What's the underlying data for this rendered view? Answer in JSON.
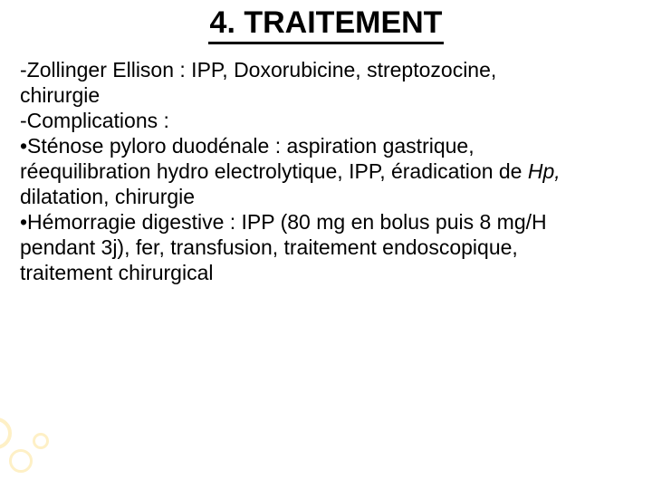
{
  "title": {
    "text": "4. TRAITEMENT",
    "fontsize": 34
  },
  "body": {
    "fontsize": 23,
    "lines": {
      "l1a": "-Zollinger Ellison : IPP, Doxorubicine, streptozocine,",
      "l1b": "chirurgie",
      "l2": "-Complications :",
      "l3a": "•Sténose pyloro duodénale : aspiration gastrique,",
      "l3b_part1": "réequilibration hydro electrolytique, IPP, éradication de ",
      "l3b_italic": "Hp,",
      "l3c": "dilatation, chirurgie",
      "l4a": "•Hémorragie digestive : IPP (80 mg en bolus puis 8 mg/H",
      "l4b": "pendant 3j), fer, transfusion, traitement endoscopique,",
      "l4c": "traitement chirurgical"
    }
  },
  "colors": {
    "text": "#000000",
    "underline": "#000000",
    "background": "#ffffff",
    "accent_ring": "#fef0c6"
  }
}
